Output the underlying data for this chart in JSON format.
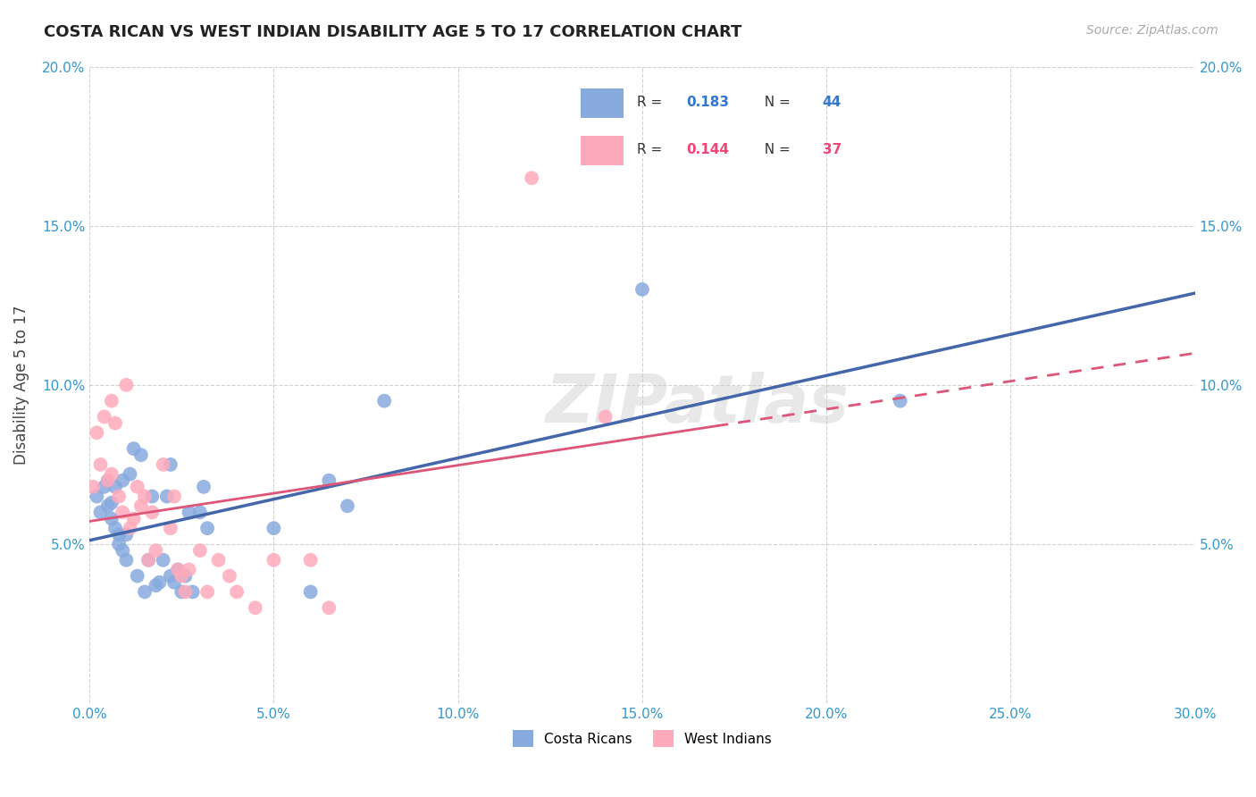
{
  "title": "COSTA RICAN VS WEST INDIAN DISABILITY AGE 5 TO 17 CORRELATION CHART",
  "source": "Source: ZipAtlas.com",
  "ylabel": "Disability Age 5 to 17",
  "xlim": [
    0.0,
    0.3
  ],
  "ylim": [
    0.0,
    0.2
  ],
  "xticks": [
    0.0,
    0.05,
    0.1,
    0.15,
    0.2,
    0.25,
    0.3
  ],
  "yticks": [
    0.0,
    0.05,
    0.1,
    0.15,
    0.2
  ],
  "xtick_labels": [
    "0.0%",
    "5.0%",
    "10.0%",
    "15.0%",
    "20.0%",
    "25.0%",
    "30.0%"
  ],
  "ytick_labels": [
    "",
    "5.0%",
    "10.0%",
    "15.0%",
    "20.0%"
  ],
  "blue_R": "0.183",
  "blue_N": "44",
  "pink_R": "0.144",
  "pink_N": "37",
  "watermark": "ZIPatlas",
  "blue_line_color": "#4466aa",
  "pink_line_color": "#dd5577",
  "blue_scatter_color": "#88aadd",
  "pink_scatter_color": "#ffaabb",
  "blue_legend_color": "#3377cc",
  "pink_legend_color": "#ee4477",
  "costa_rican_x": [
    0.002,
    0.003,
    0.004,
    0.005,
    0.005,
    0.006,
    0.006,
    0.007,
    0.007,
    0.008,
    0.008,
    0.009,
    0.009,
    0.01,
    0.01,
    0.011,
    0.012,
    0.013,
    0.014,
    0.015,
    0.016,
    0.017,
    0.018,
    0.019,
    0.02,
    0.021,
    0.022,
    0.022,
    0.023,
    0.024,
    0.025,
    0.026,
    0.027,
    0.028,
    0.03,
    0.031,
    0.032,
    0.05,
    0.06,
    0.065,
    0.07,
    0.08,
    0.15,
    0.22
  ],
  "costa_rican_y": [
    0.065,
    0.06,
    0.068,
    0.07,
    0.062,
    0.063,
    0.058,
    0.055,
    0.068,
    0.053,
    0.05,
    0.048,
    0.07,
    0.045,
    0.053,
    0.072,
    0.08,
    0.04,
    0.078,
    0.035,
    0.045,
    0.065,
    0.037,
    0.038,
    0.045,
    0.065,
    0.04,
    0.075,
    0.038,
    0.042,
    0.035,
    0.04,
    0.06,
    0.035,
    0.06,
    0.068,
    0.055,
    0.055,
    0.035,
    0.07,
    0.062,
    0.095,
    0.13,
    0.095
  ],
  "west_indian_x": [
    0.001,
    0.002,
    0.003,
    0.004,
    0.005,
    0.006,
    0.006,
    0.007,
    0.008,
    0.009,
    0.01,
    0.011,
    0.012,
    0.013,
    0.014,
    0.015,
    0.016,
    0.017,
    0.018,
    0.02,
    0.022,
    0.023,
    0.024,
    0.025,
    0.026,
    0.027,
    0.03,
    0.032,
    0.035,
    0.038,
    0.04,
    0.045,
    0.05,
    0.06,
    0.065,
    0.12,
    0.14
  ],
  "west_indian_y": [
    0.068,
    0.085,
    0.075,
    0.09,
    0.07,
    0.072,
    0.095,
    0.088,
    0.065,
    0.06,
    0.1,
    0.055,
    0.058,
    0.068,
    0.062,
    0.065,
    0.045,
    0.06,
    0.048,
    0.075,
    0.055,
    0.065,
    0.042,
    0.04,
    0.035,
    0.042,
    0.048,
    0.035,
    0.045,
    0.04,
    0.035,
    0.03,
    0.045,
    0.045,
    0.03,
    0.165,
    0.09
  ]
}
